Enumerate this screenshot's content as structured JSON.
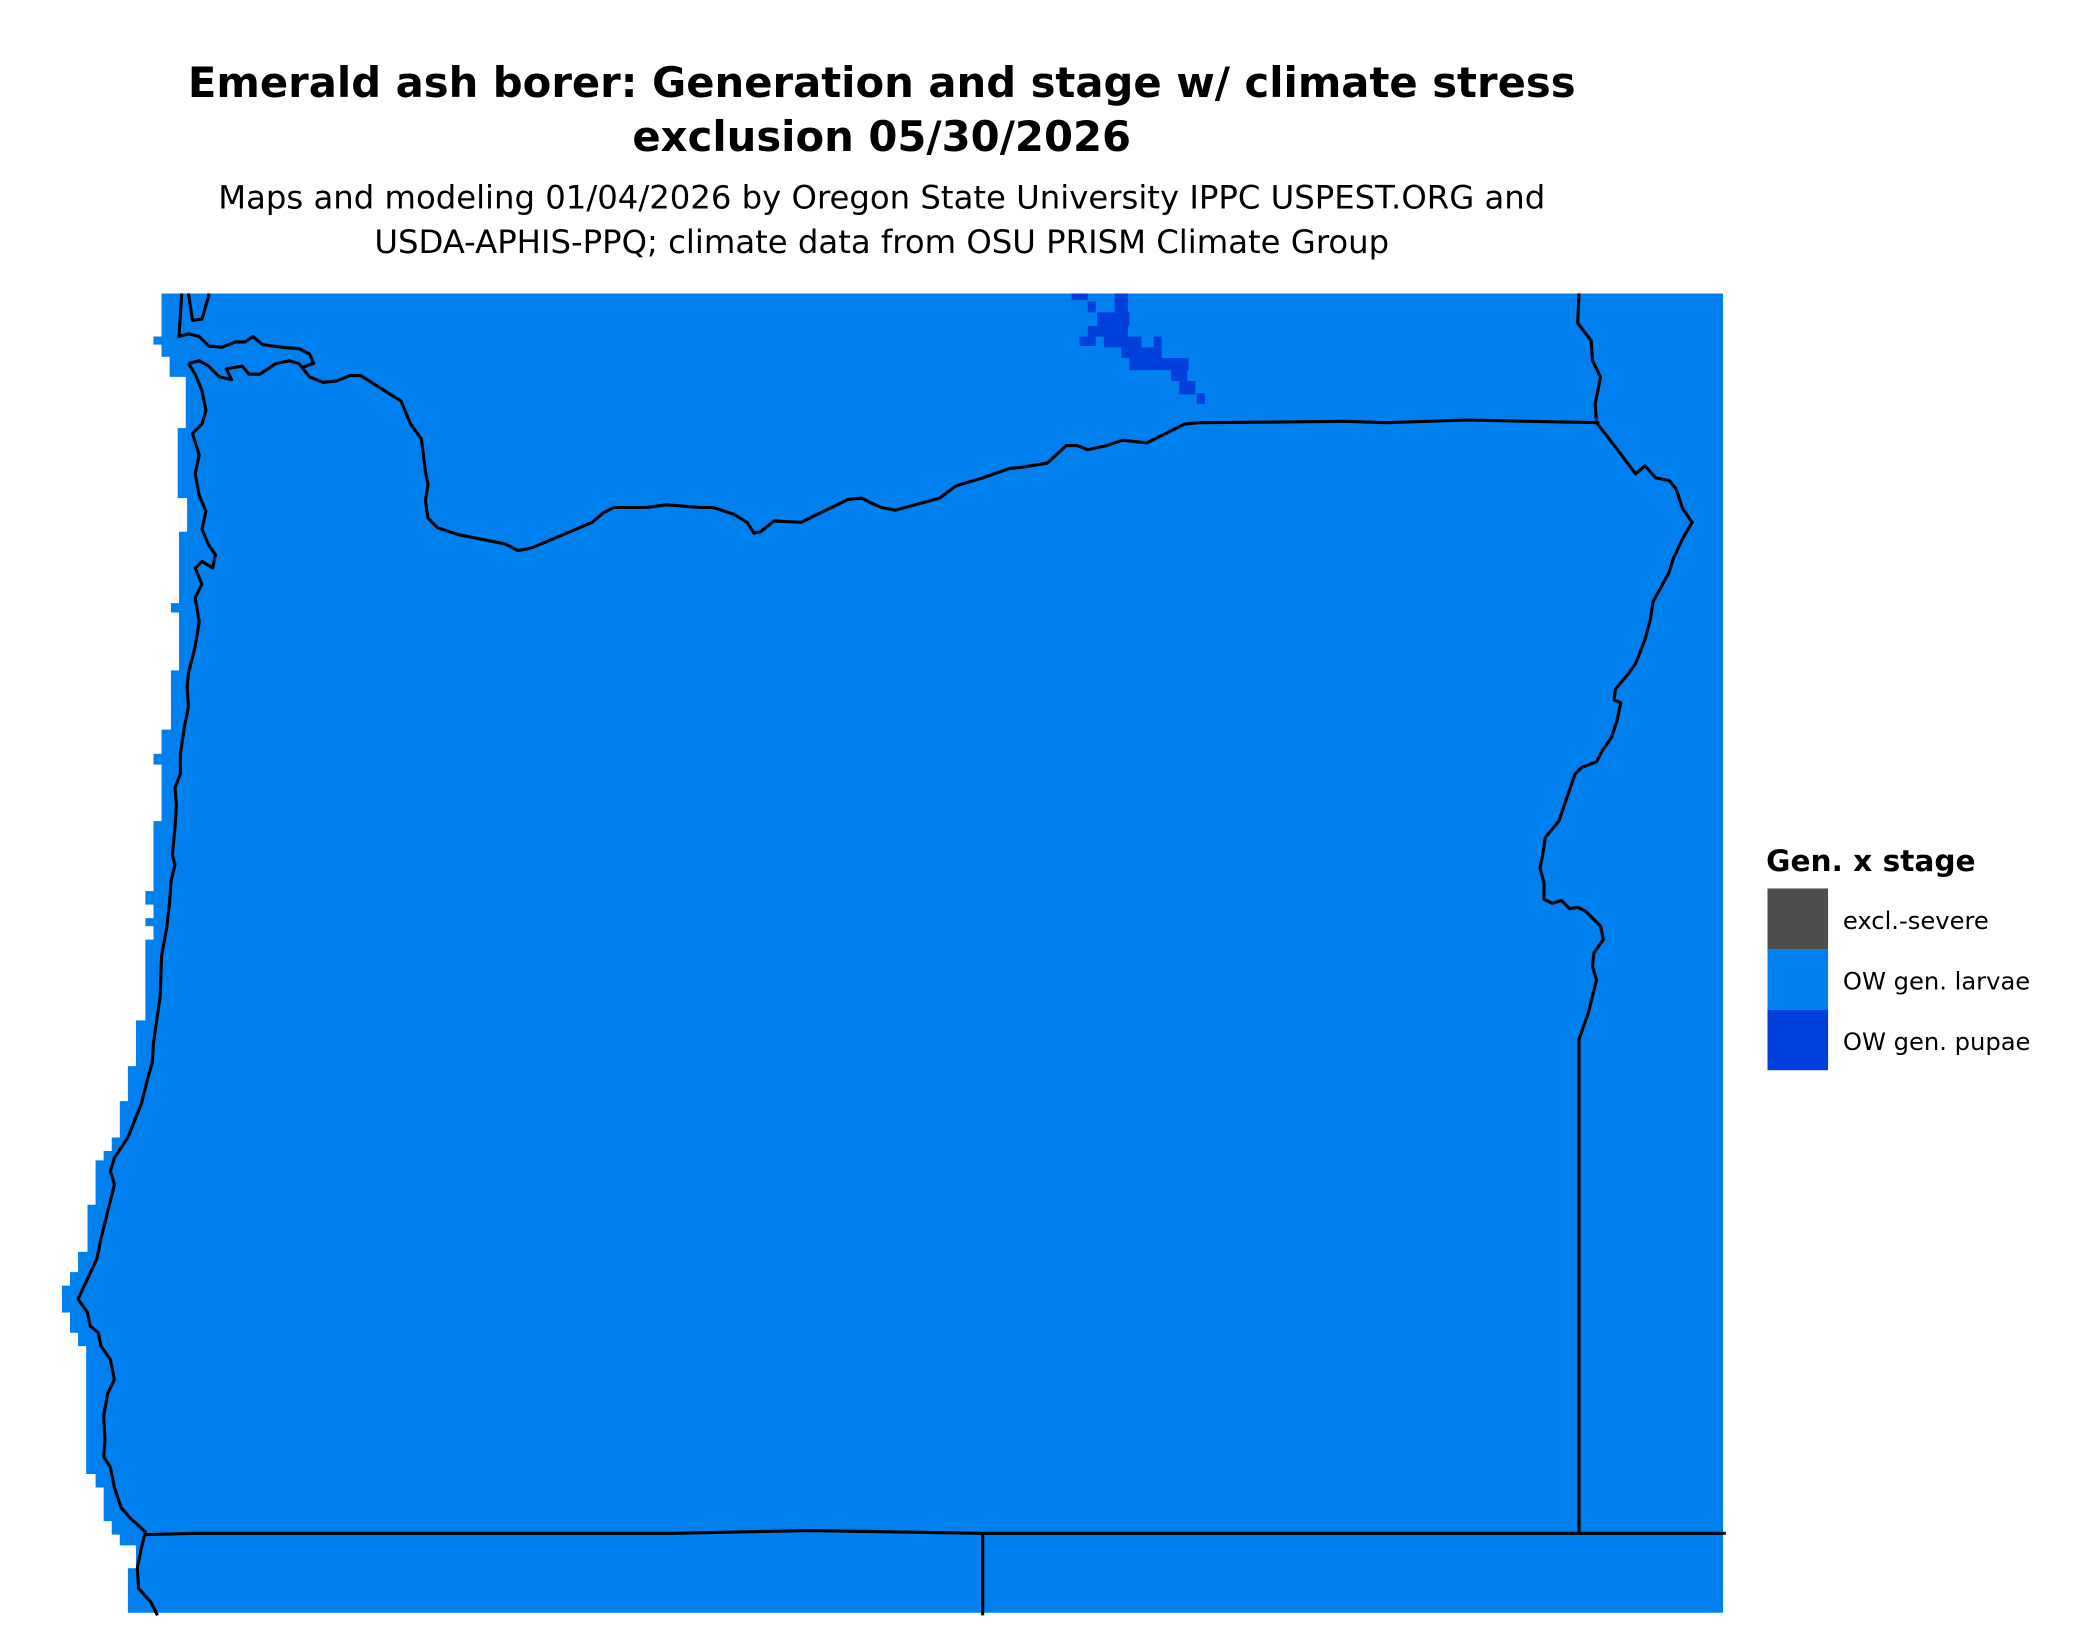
{
  "title": {
    "line1": "Emerald ash borer: Generation and stage w/ climate stress",
    "line2": "exclusion 05/30/2026"
  },
  "subtitle": {
    "line1": "Maps and modeling 01/04/2026 by Oregon State University IPPC USPEST.ORG and",
    "line2": "USDA-APHIS-PPQ; climate data from OSU PRISM Climate Group"
  },
  "legend": {
    "title": "Gen. x stage",
    "items": [
      {
        "label": "excl.-severe",
        "color": "#4d4d4d"
      },
      {
        "label": "OW gen. larvae",
        "color": "#0080ee"
      },
      {
        "label": "OW gen. pupae",
        "color": "#003fdc"
      }
    ]
  },
  "map": {
    "fill_color": "#0080ee",
    "pupae_color": "#003fdc",
    "boundary_color": "#000000"
  }
}
